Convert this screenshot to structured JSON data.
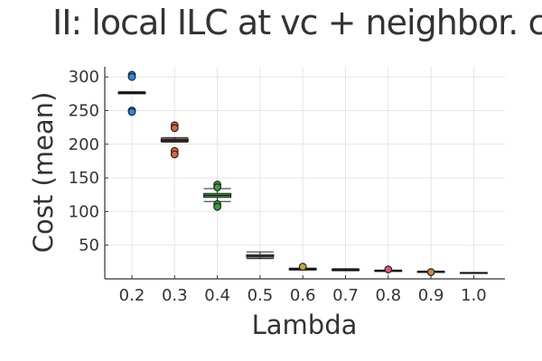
{
  "chart_data": {
    "type": "box",
    "title": "II: local ILC at vc + neighbor. com",
    "xlabel": "Lambda",
    "ylabel": "Cost (mean)",
    "ylim": [
      0,
      315
    ],
    "yticks": [
      50,
      100,
      150,
      200,
      250,
      300
    ],
    "grid": true,
    "categories": [
      "0.2",
      "0.3",
      "0.4",
      "0.5",
      "0.6",
      "0.7",
      "0.8",
      "0.9",
      "1.0"
    ],
    "boxes": [
      {
        "category": "0.2",
        "min": 275,
        "q1": 275,
        "median": 276,
        "q3": 277,
        "max": 278,
        "outliers": [
          303,
          300,
          250,
          248
        ],
        "color": "#1f8ff0"
      },
      {
        "category": "0.3",
        "min": 203,
        "q1": 204,
        "median": 206,
        "q3": 208,
        "max": 210,
        "outliers": [
          228,
          224,
          190,
          185
        ],
        "color": "#e0633a"
      },
      {
        "category": "0.4",
        "min": 115,
        "q1": 121,
        "median": 124,
        "q3": 127,
        "max": 134,
        "outliers": [
          140,
          136,
          111,
          107
        ],
        "color": "#3aa03a"
      },
      {
        "category": "0.5",
        "min": 30,
        "q1": 32,
        "median": 34,
        "q3": 36,
        "max": 40,
        "outliers": [],
        "color": "#a4cc8a"
      },
      {
        "category": "0.6",
        "min": 13,
        "q1": 13.5,
        "median": 14.5,
        "q3": 15.5,
        "max": 16,
        "outliers": [
          18
        ],
        "color": "#c9a23a"
      },
      {
        "category": "0.7",
        "min": 12,
        "q1": 12.5,
        "median": 13,
        "q3": 14,
        "max": 15,
        "outliers": [],
        "color": "#c9ad3a"
      },
      {
        "category": "0.8",
        "min": 11,
        "q1": 11.5,
        "median": 12,
        "q3": 12.5,
        "max": 13,
        "outliers": [
          14
        ],
        "color": "#e0557a"
      },
      {
        "category": "0.9",
        "min": 9.5,
        "q1": 10,
        "median": 10.5,
        "q3": 11,
        "max": 11.5,
        "outliers": [
          10
        ],
        "color": "#c88a3a"
      },
      {
        "category": "1.0",
        "min": 8.5,
        "q1": 8.8,
        "median": 9,
        "q3": 9.3,
        "max": 9.5,
        "outliers": [],
        "color": "#888888"
      }
    ]
  }
}
